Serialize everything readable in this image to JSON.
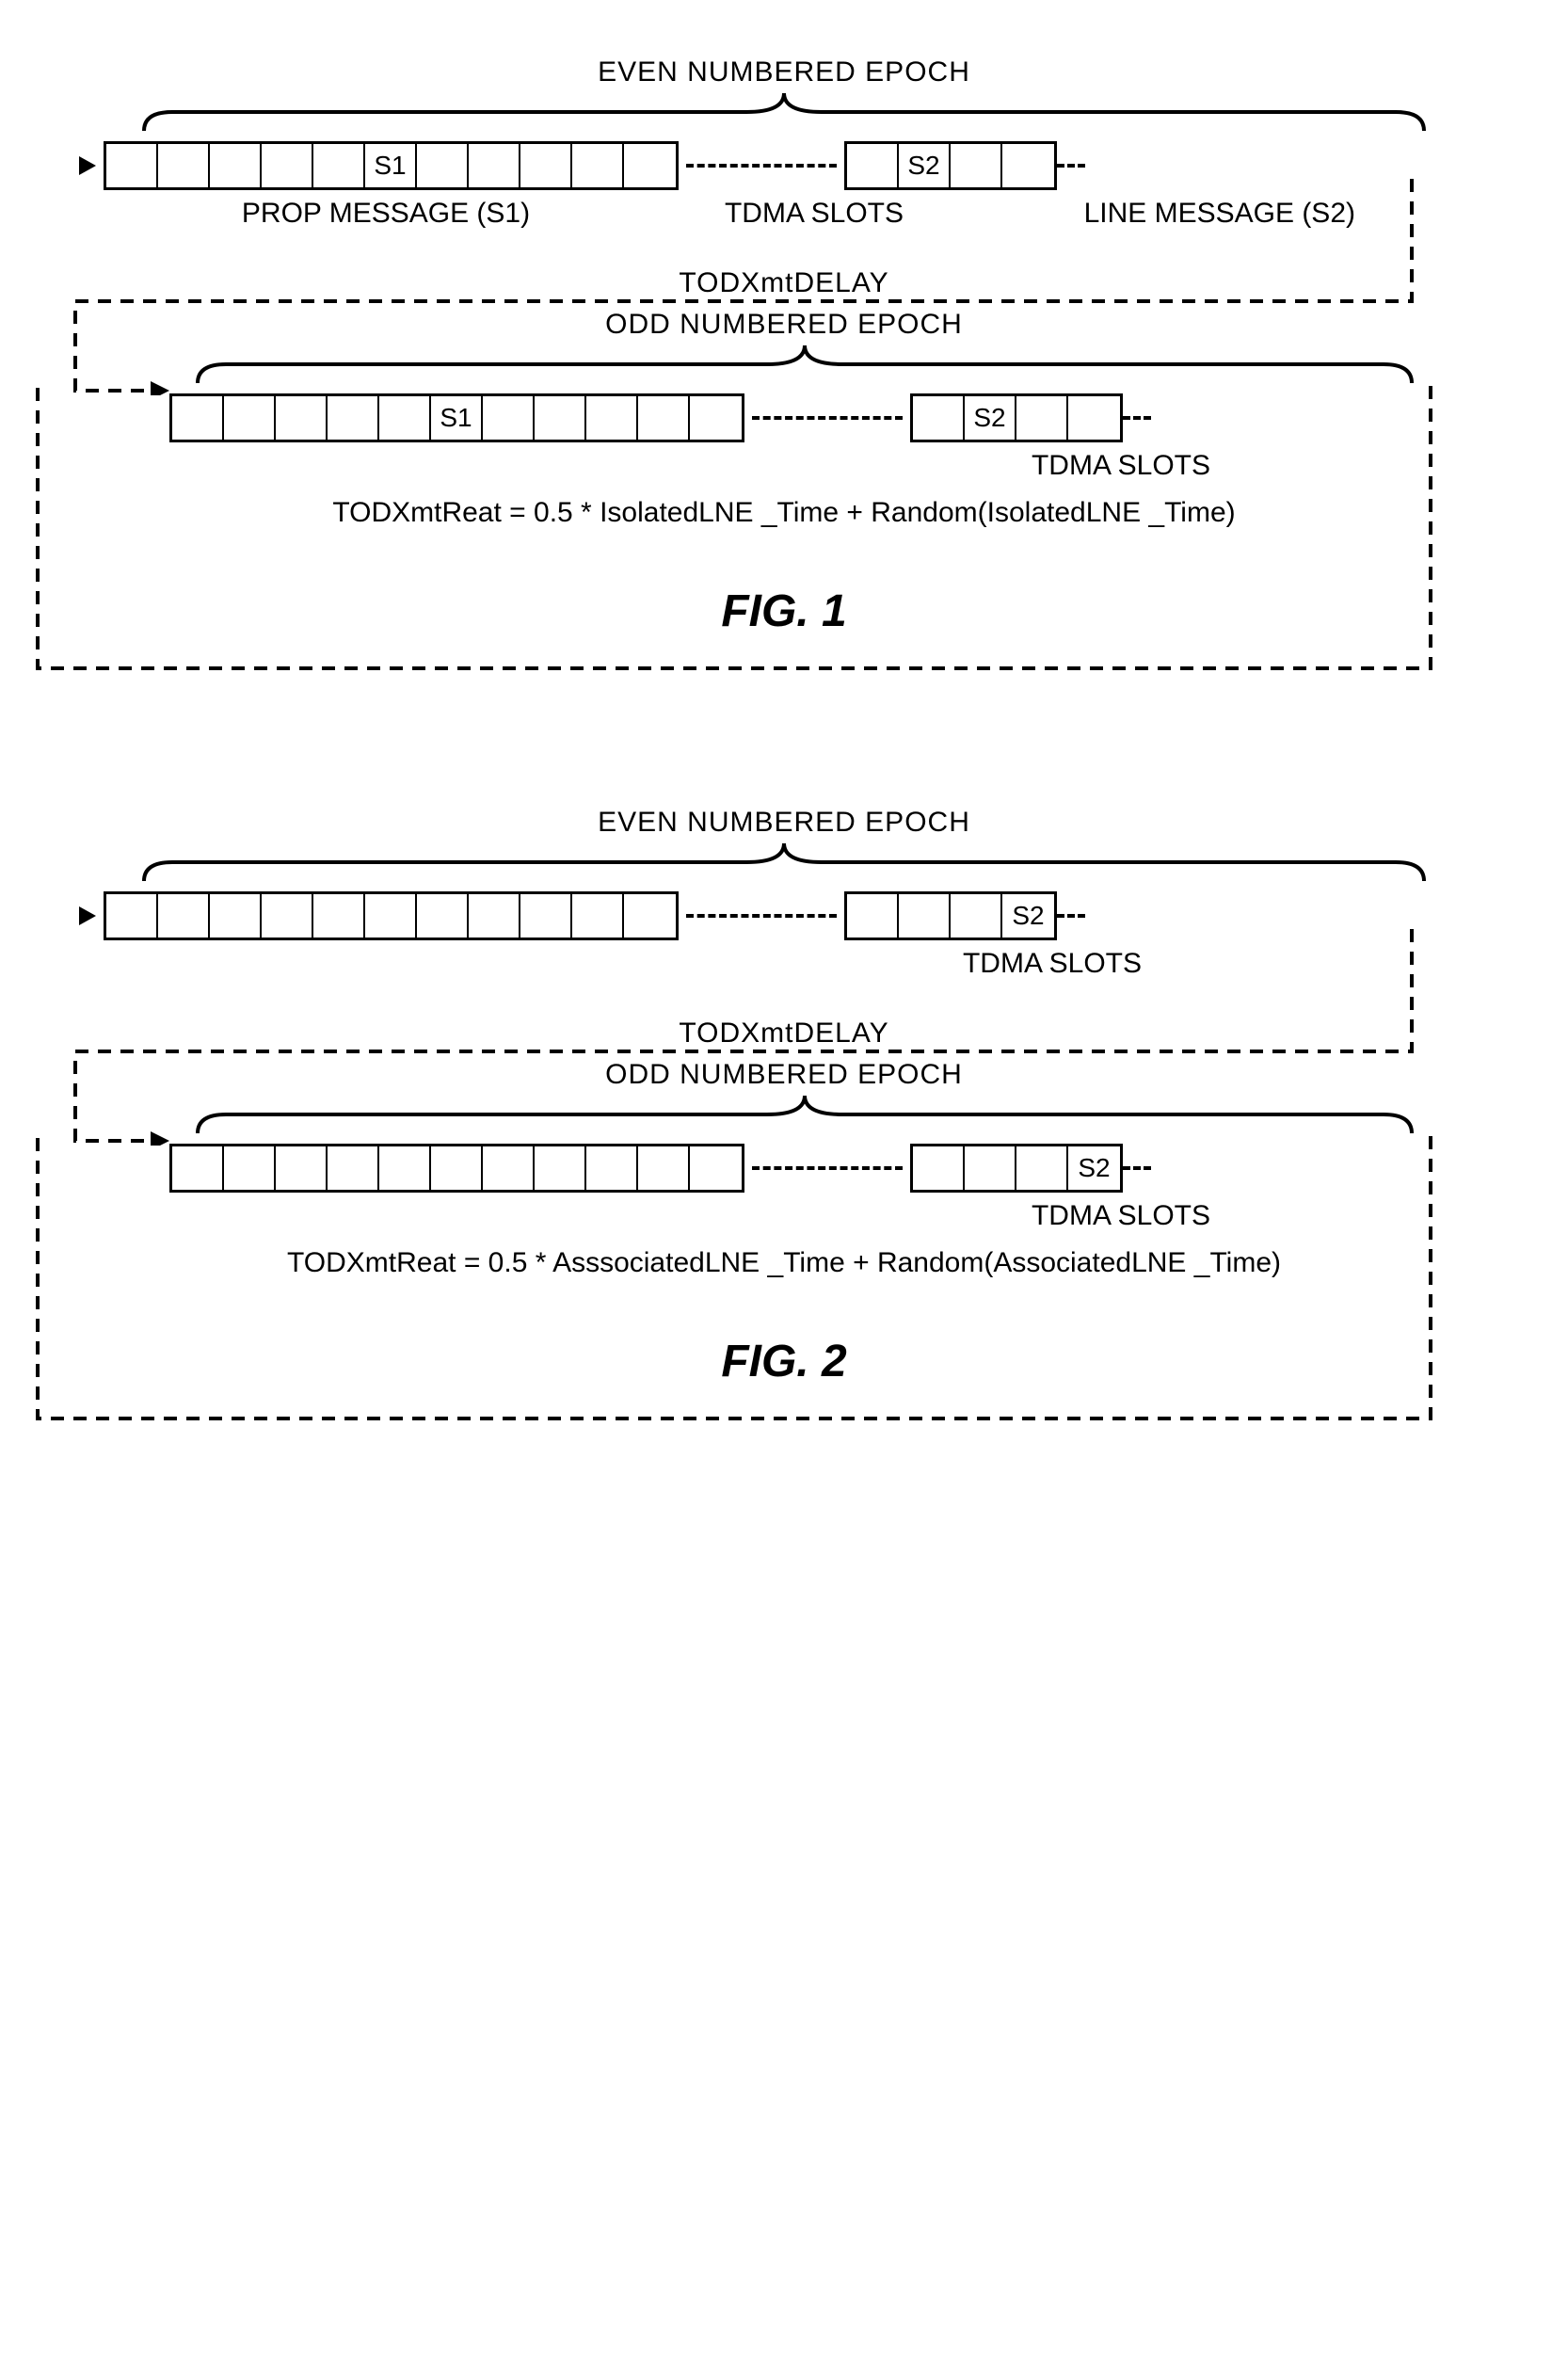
{
  "figures": [
    {
      "id": "fig1",
      "caption": "FIG. 1",
      "caption_fontsize": 48,
      "text_fontsize": 30,
      "slot_fontsize": 28,
      "even_epoch_label": "EVEN NUMBERED EPOCH",
      "odd_epoch_label": "ODD NUMBERED EPOCH",
      "tdma_label": "TDMA SLOTS",
      "prop_label": "PROP MESSAGE (S1)",
      "line_label": "LINE MESSAGE (S2)",
      "tod_delay_label": "TODXmtDELAY",
      "formula": "TODXmtReat = 0.5 * IsolatedLNE _Time + Random(IsolatedLNE _Time)",
      "even_row": {
        "slots_left": [
          "",
          "",
          "",
          "",
          "",
          "S1",
          "",
          "",
          "",
          "",
          ""
        ],
        "slots_right": [
          "",
          "S2",
          "",
          ""
        ],
        "gap_width": 160
      },
      "odd_row": {
        "slots_left": [
          "",
          "",
          "",
          "",
          "",
          "S1",
          "",
          "",
          "",
          "",
          ""
        ],
        "slots_right": [
          "",
          "S2",
          "",
          ""
        ],
        "gap_width": 160,
        "indent": 70
      },
      "brace_width_even": 1380,
      "brace_width_odd": 1310
    },
    {
      "id": "fig2",
      "caption": "FIG. 2",
      "caption_fontsize": 48,
      "text_fontsize": 30,
      "slot_fontsize": 28,
      "even_epoch_label": "EVEN NUMBERED EPOCH",
      "odd_epoch_label": "ODD NUMBERED EPOCH",
      "tdma_label": "TDMA SLOTS",
      "tod_delay_label": "TODXmtDELAY",
      "formula": "TODXmtReat = 0.5 * AsssociatedLNE _Time + Random(AssociatedLNE _Time)",
      "even_row": {
        "slots_left": [
          "",
          "",
          "",
          "",
          "",
          "",
          "",
          "",
          "",
          "",
          ""
        ],
        "slots_right": [
          "",
          "",
          "",
          "S2"
        ],
        "gap_width": 160
      },
      "odd_row": {
        "slots_left": [
          "",
          "",
          "",
          "",
          "",
          "",
          "",
          "",
          "",
          "",
          ""
        ],
        "slots_right": [
          "",
          "",
          "",
          "S2"
        ],
        "gap_width": 160,
        "indent": 70
      },
      "brace_width_even": 1380,
      "brace_width_odd": 1310
    }
  ],
  "colors": {
    "stroke": "#000000",
    "background": "#ffffff"
  }
}
